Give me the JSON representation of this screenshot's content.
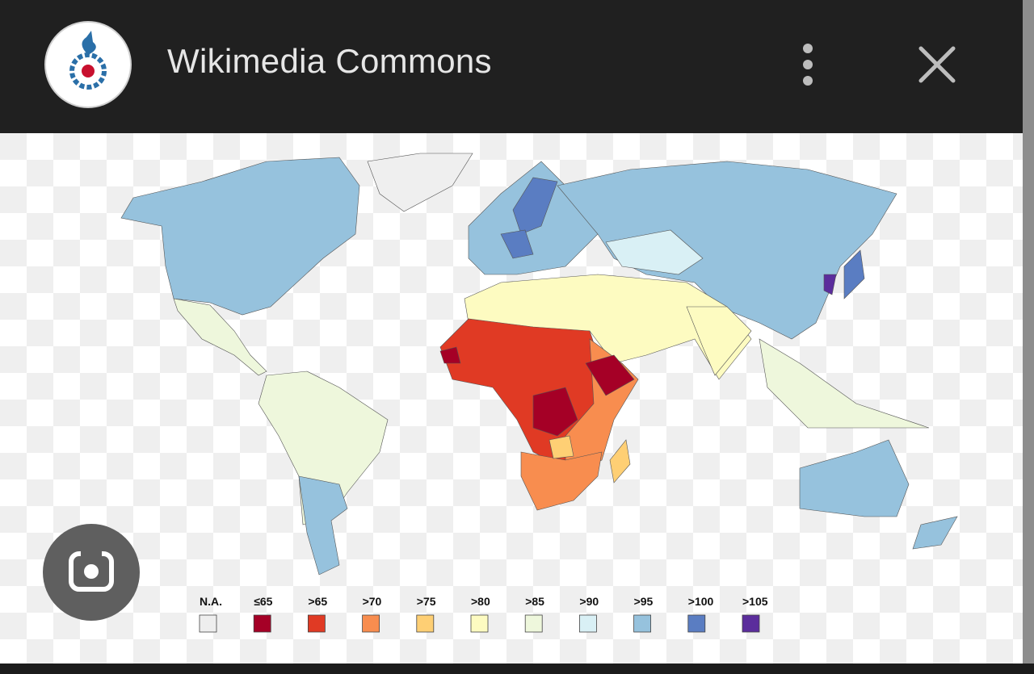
{
  "header": {
    "title": "Wikimedia Commons"
  },
  "legend": {
    "items": [
      {
        "label": "N.A.",
        "color": "#eeeeee"
      },
      {
        "label": "≤65",
        "color": "#a50026"
      },
      {
        "label": ">65",
        "color": "#e03a24"
      },
      {
        "label": ">70",
        "color": "#f88d4f"
      },
      {
        "label": ">75",
        "color": "#fecf74"
      },
      {
        "label": ">80",
        "color": "#fdfbc1"
      },
      {
        "label": ">85",
        "color": "#eef7dc"
      },
      {
        "label": ">90",
        "color": "#d9f0f5"
      },
      {
        "label": ">95",
        "color": "#96c2dd"
      },
      {
        "label": ">100",
        "color": "#5a7dc2"
      },
      {
        "label": ">105",
        "color": "#5b2d9c"
      }
    ]
  }
}
